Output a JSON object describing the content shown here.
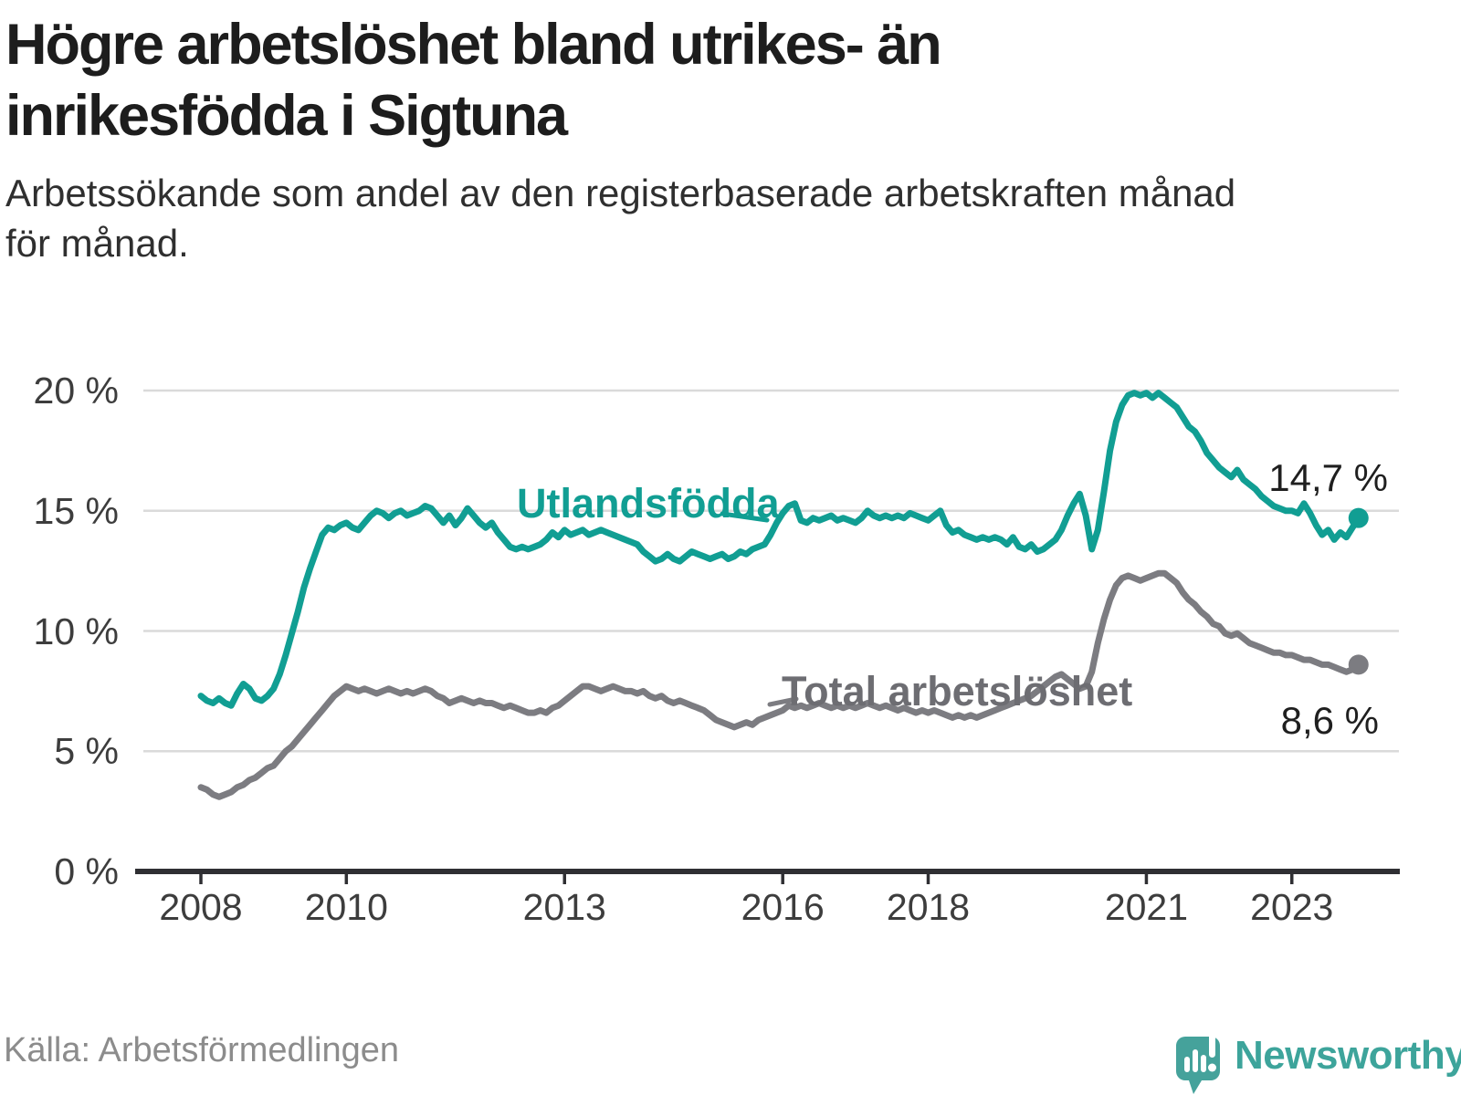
{
  "header": {
    "title_lines": [
      "Högre arbetslöshet bland utrikes- än",
      "inrikesfödda i Sigtuna"
    ],
    "subtitle_lines": [
      "Arbetssökande som andel av den registerbaserade arbetskraften månad",
      "för månad."
    ]
  },
  "chart_data": {
    "type": "line",
    "title": "Högre arbetslöshet bland utrikes- än inrikesfödda i Sigtuna",
    "subtitle": "Arbetssökande som andel av den registerbaserade arbetskraften månad för månad.",
    "unit": "%",
    "x_start": "2008-01",
    "x_end": "2023-12",
    "points_per_year": 12,
    "ylim": [
      0,
      21
    ],
    "grid": "horizontal",
    "grid_color": "#dadada",
    "axis_color": "#2f2f33",
    "y_ticks": [
      {
        "value": 20,
        "label": "20 %"
      },
      {
        "value": 15,
        "label": "15 %"
      },
      {
        "value": 10,
        "label": "10 %"
      },
      {
        "value": 5,
        "label": "5 %"
      },
      {
        "value": 0,
        "label": "0 %"
      }
    ],
    "x_ticks": [
      {
        "year": 2008,
        "label": "2008"
      },
      {
        "year": 2010,
        "label": "2010"
      },
      {
        "year": 2013,
        "label": "2013"
      },
      {
        "year": 2016,
        "label": "2016"
      },
      {
        "year": 2018,
        "label": "2018"
      },
      {
        "year": 2021,
        "label": "2021"
      },
      {
        "year": 2023,
        "label": "2023"
      }
    ],
    "series": [
      {
        "name": "Utlandsfödda",
        "color": "#119e93",
        "label_color": "#119e93",
        "end_label": "14,7 %",
        "end_value": 14.7,
        "values": [
          7.3,
          7.1,
          7.0,
          7.2,
          7.0,
          6.9,
          7.4,
          7.8,
          7.6,
          7.2,
          7.1,
          7.3,
          7.6,
          8.2,
          9.0,
          9.9,
          10.8,
          11.8,
          12.6,
          13.3,
          14.0,
          14.3,
          14.2,
          14.4,
          14.5,
          14.3,
          14.2,
          14.5,
          14.8,
          15.0,
          14.9,
          14.7,
          14.9,
          15.0,
          14.8,
          14.9,
          15.0,
          15.2,
          15.1,
          14.8,
          14.5,
          14.8,
          14.4,
          14.7,
          15.1,
          14.8,
          14.5,
          14.3,
          14.5,
          14.1,
          13.8,
          13.5,
          13.4,
          13.5,
          13.4,
          13.5,
          13.6,
          13.8,
          14.1,
          13.9,
          14.2,
          14.0,
          14.1,
          14.2,
          14.0,
          14.1,
          14.2,
          14.1,
          14.0,
          13.9,
          13.8,
          13.7,
          13.6,
          13.3,
          13.1,
          12.9,
          13.0,
          13.2,
          13.0,
          12.9,
          13.1,
          13.3,
          13.2,
          13.1,
          13.0,
          13.1,
          13.2,
          13.0,
          13.1,
          13.3,
          13.2,
          13.4,
          13.5,
          13.6,
          14.0,
          14.5,
          14.9,
          15.2,
          15.3,
          14.6,
          14.5,
          14.7,
          14.6,
          14.7,
          14.8,
          14.6,
          14.7,
          14.6,
          14.5,
          14.7,
          15.0,
          14.8,
          14.7,
          14.8,
          14.7,
          14.8,
          14.7,
          14.9,
          14.8,
          14.7,
          14.6,
          14.8,
          15.0,
          14.4,
          14.1,
          14.2,
          14.0,
          13.9,
          13.8,
          13.9,
          13.8,
          13.9,
          13.8,
          13.6,
          13.9,
          13.5,
          13.4,
          13.6,
          13.3,
          13.4,
          13.6,
          13.8,
          14.2,
          14.8,
          15.3,
          15.7,
          14.8,
          13.4,
          14.2,
          15.8,
          17.5,
          18.7,
          19.4,
          19.8,
          19.9,
          19.8,
          19.9,
          19.7,
          19.9,
          19.7,
          19.5,
          19.3,
          18.9,
          18.5,
          18.3,
          17.9,
          17.4,
          17.1,
          16.8,
          16.6,
          16.4,
          16.7,
          16.3,
          16.1,
          15.9,
          15.6,
          15.4,
          15.2,
          15.1,
          15.0,
          15.0,
          14.9,
          15.3,
          14.9,
          14.4,
          14.0,
          14.2,
          13.8,
          14.1,
          13.9,
          14.3,
          14.7
        ]
      },
      {
        "name": "Total arbetslöshet",
        "color": "#7c7c81",
        "label_color": "#6d6d72",
        "end_label": "8,6 %",
        "end_value": 8.6,
        "values": [
          3.5,
          3.4,
          3.2,
          3.1,
          3.2,
          3.3,
          3.5,
          3.6,
          3.8,
          3.9,
          4.1,
          4.3,
          4.4,
          4.7,
          5.0,
          5.2,
          5.5,
          5.8,
          6.1,
          6.4,
          6.7,
          7.0,
          7.3,
          7.5,
          7.7,
          7.6,
          7.5,
          7.6,
          7.5,
          7.4,
          7.5,
          7.6,
          7.5,
          7.4,
          7.5,
          7.4,
          7.5,
          7.6,
          7.5,
          7.3,
          7.2,
          7.0,
          7.1,
          7.2,
          7.1,
          7.0,
          7.1,
          7.0,
          7.0,
          6.9,
          6.8,
          6.9,
          6.8,
          6.7,
          6.6,
          6.6,
          6.7,
          6.6,
          6.8,
          6.9,
          7.1,
          7.3,
          7.5,
          7.7,
          7.7,
          7.6,
          7.5,
          7.6,
          7.7,
          7.6,
          7.5,
          7.5,
          7.4,
          7.5,
          7.3,
          7.2,
          7.3,
          7.1,
          7.0,
          7.1,
          7.0,
          6.9,
          6.8,
          6.7,
          6.5,
          6.3,
          6.2,
          6.1,
          6.0,
          6.1,
          6.2,
          6.1,
          6.3,
          6.4,
          6.5,
          6.6,
          6.7,
          6.9,
          6.8,
          6.9,
          6.8,
          6.9,
          7.0,
          6.9,
          6.8,
          6.9,
          6.8,
          6.9,
          6.8,
          6.9,
          7.0,
          6.9,
          6.8,
          6.9,
          6.8,
          6.7,
          6.8,
          6.7,
          6.6,
          6.7,
          6.6,
          6.7,
          6.6,
          6.5,
          6.4,
          6.5,
          6.4,
          6.5,
          6.4,
          6.5,
          6.6,
          6.7,
          6.8,
          6.9,
          7.0,
          7.1,
          7.2,
          7.3,
          7.5,
          7.7,
          7.9,
          8.1,
          8.2,
          8.0,
          7.8,
          7.6,
          7.7,
          8.3,
          9.5,
          10.5,
          11.3,
          11.9,
          12.2,
          12.3,
          12.2,
          12.1,
          12.2,
          12.3,
          12.4,
          12.4,
          12.2,
          12.0,
          11.6,
          11.3,
          11.1,
          10.8,
          10.6,
          10.3,
          10.2,
          9.9,
          9.8,
          9.9,
          9.7,
          9.5,
          9.4,
          9.3,
          9.2,
          9.1,
          9.1,
          9.0,
          9.0,
          8.9,
          8.8,
          8.8,
          8.7,
          8.6,
          8.6,
          8.5,
          8.4,
          8.3,
          8.4,
          8.6
        ]
      }
    ]
  },
  "footer": {
    "source": "Källa: Arbetsförmedlingen",
    "brand": "Newsworthy",
    "brand_color": "#3da49b",
    "logo_color": "#45a29b"
  }
}
